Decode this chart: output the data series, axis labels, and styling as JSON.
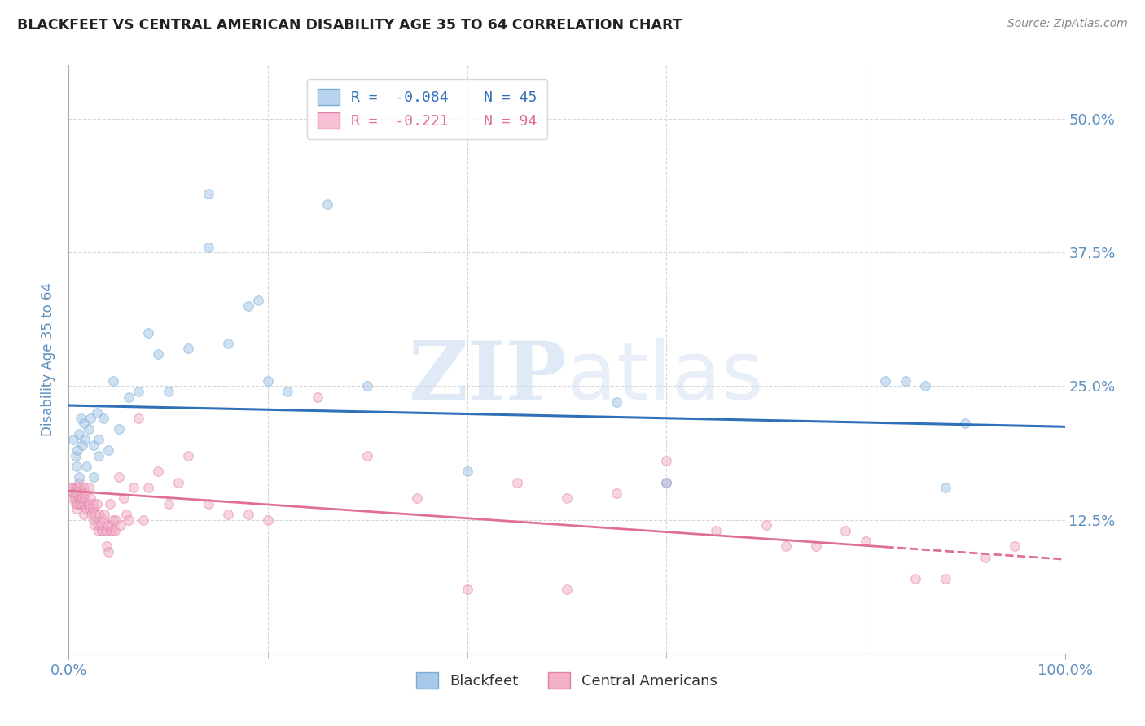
{
  "title": "BLACKFEET VS CENTRAL AMERICAN DISABILITY AGE 35 TO 64 CORRELATION CHART",
  "source": "Source: ZipAtlas.com",
  "ylabel": "Disability Age 35 to 64",
  "y_tick_values": [
    0.125,
    0.25,
    0.375,
    0.5
  ],
  "xlim": [
    0,
    1.0
  ],
  "ylim": [
    0.0,
    0.55
  ],
  "blackfeet_color": "#a8c8e8",
  "blackfeet_edge_color": "#7aadd4",
  "ca_color": "#f4b0c8",
  "ca_edge_color": "#e080a8",
  "trend_blue": "#3070b8",
  "trend_pink": "#e07090",
  "legend_box_color_blue": "#b8d4f0",
  "legend_box_color_pink": "#f8c0d4",
  "r_blue": -0.084,
  "n_blue": 45,
  "r_pink": -0.221,
  "n_pink": 94,
  "blue_trend_y0": 0.232,
  "blue_trend_y1": 0.212,
  "pink_trend_y0": 0.152,
  "pink_trend_y1": 0.088,
  "pink_trend_solid_end": 0.82,
  "blackfeet_x": [
    0.005,
    0.007,
    0.008,
    0.009,
    0.01,
    0.01,
    0.012,
    0.014,
    0.015,
    0.016,
    0.018,
    0.02,
    0.022,
    0.025,
    0.025,
    0.028,
    0.03,
    0.03,
    0.035,
    0.04,
    0.045,
    0.05,
    0.06,
    0.07,
    0.08,
    0.09,
    0.1,
    0.12,
    0.14,
    0.16,
    0.18,
    0.2,
    0.22,
    0.26,
    0.3,
    0.55,
    0.6,
    0.82,
    0.84,
    0.86,
    0.88,
    0.9,
    0.14,
    0.19,
    0.4
  ],
  "blackfeet_y": [
    0.2,
    0.185,
    0.175,
    0.19,
    0.205,
    0.165,
    0.22,
    0.195,
    0.215,
    0.2,
    0.175,
    0.21,
    0.22,
    0.165,
    0.195,
    0.225,
    0.2,
    0.185,
    0.22,
    0.19,
    0.255,
    0.21,
    0.24,
    0.245,
    0.3,
    0.28,
    0.245,
    0.285,
    0.38,
    0.29,
    0.325,
    0.255,
    0.245,
    0.42,
    0.25,
    0.235,
    0.16,
    0.255,
    0.255,
    0.25,
    0.155,
    0.215,
    0.43,
    0.33,
    0.17
  ],
  "ca_x": [
    0.003,
    0.004,
    0.005,
    0.005,
    0.006,
    0.006,
    0.007,
    0.007,
    0.008,
    0.008,
    0.009,
    0.009,
    0.01,
    0.01,
    0.01,
    0.011,
    0.012,
    0.013,
    0.013,
    0.014,
    0.015,
    0.015,
    0.015,
    0.016,
    0.017,
    0.018,
    0.019,
    0.02,
    0.02,
    0.021,
    0.022,
    0.023,
    0.024,
    0.025,
    0.025,
    0.026,
    0.027,
    0.028,
    0.03,
    0.03,
    0.031,
    0.032,
    0.033,
    0.034,
    0.035,
    0.036,
    0.037,
    0.038,
    0.039,
    0.04,
    0.041,
    0.042,
    0.043,
    0.044,
    0.045,
    0.046,
    0.047,
    0.05,
    0.052,
    0.055,
    0.058,
    0.06,
    0.065,
    0.07,
    0.075,
    0.08,
    0.09,
    0.1,
    0.11,
    0.12,
    0.14,
    0.16,
    0.18,
    0.2,
    0.25,
    0.3,
    0.35,
    0.4,
    0.45,
    0.5,
    0.55,
    0.6,
    0.65,
    0.7,
    0.75,
    0.8,
    0.85,
    0.5,
    0.6,
    0.72,
    0.78,
    0.88,
    0.92,
    0.95
  ],
  "ca_y": [
    0.155,
    0.145,
    0.155,
    0.15,
    0.15,
    0.145,
    0.155,
    0.14,
    0.15,
    0.135,
    0.14,
    0.155,
    0.155,
    0.145,
    0.16,
    0.14,
    0.145,
    0.15,
    0.14,
    0.145,
    0.14,
    0.155,
    0.13,
    0.145,
    0.15,
    0.135,
    0.14,
    0.155,
    0.14,
    0.135,
    0.145,
    0.13,
    0.135,
    0.14,
    0.125,
    0.12,
    0.13,
    0.14,
    0.12,
    0.115,
    0.13,
    0.12,
    0.115,
    0.115,
    0.125,
    0.13,
    0.115,
    0.1,
    0.12,
    0.095,
    0.14,
    0.115,
    0.12,
    0.115,
    0.125,
    0.115,
    0.125,
    0.165,
    0.12,
    0.145,
    0.13,
    0.125,
    0.155,
    0.22,
    0.125,
    0.155,
    0.17,
    0.14,
    0.16,
    0.185,
    0.14,
    0.13,
    0.13,
    0.125,
    0.24,
    0.185,
    0.145,
    0.06,
    0.16,
    0.145,
    0.15,
    0.18,
    0.115,
    0.12,
    0.1,
    0.105,
    0.07,
    0.06,
    0.16,
    0.1,
    0.115,
    0.07,
    0.09,
    0.1
  ],
  "watermark_zip": "ZIP",
  "watermark_atlas": "atlas",
  "background_color": "#ffffff",
  "grid_color": "#d8d8d8",
  "axis_label_color": "#5b8fbf",
  "title_color": "#222222",
  "marker_size": 70,
  "marker_alpha": 0.55,
  "figsize": [
    14.06,
    8.92
  ],
  "dpi": 100
}
